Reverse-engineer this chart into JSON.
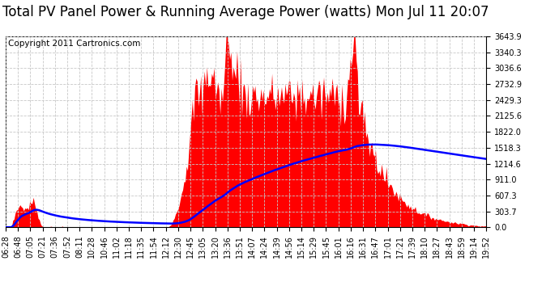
{
  "title": "Total PV Panel Power & Running Average Power (watts) Mon Jul 11 20:07",
  "copyright": "Copyright 2011 Cartronics.com",
  "background_color": "#ffffff",
  "plot_background": "#ffffff",
  "bar_color": "#ff0000",
  "line_color": "#0000ff",
  "grid_color": "#c8c8c8",
  "ymax": 3643.9,
  "yticks": [
    0.0,
    303.7,
    607.3,
    911.0,
    1214.6,
    1518.3,
    1822.0,
    2125.6,
    2429.3,
    2732.9,
    3036.6,
    3340.3,
    3643.9
  ],
  "x_labels": [
    "06:28",
    "06:48",
    "07:05",
    "07:21",
    "07:36",
    "07:52",
    "08:11",
    "10:28",
    "10:46",
    "11:02",
    "11:18",
    "11:35",
    "11:54",
    "12:12",
    "12:30",
    "12:45",
    "13:05",
    "13:20",
    "13:36",
    "13:51",
    "14:07",
    "14:24",
    "14:39",
    "14:56",
    "15:14",
    "15:29",
    "15:45",
    "16:01",
    "16:16",
    "16:31",
    "16:47",
    "17:01",
    "17:21",
    "17:39",
    "18:10",
    "18:27",
    "18:43",
    "18:59",
    "19:14",
    "19:52"
  ],
  "title_fontsize": 12,
  "tick_fontsize": 7,
  "copyright_fontsize": 7.5
}
